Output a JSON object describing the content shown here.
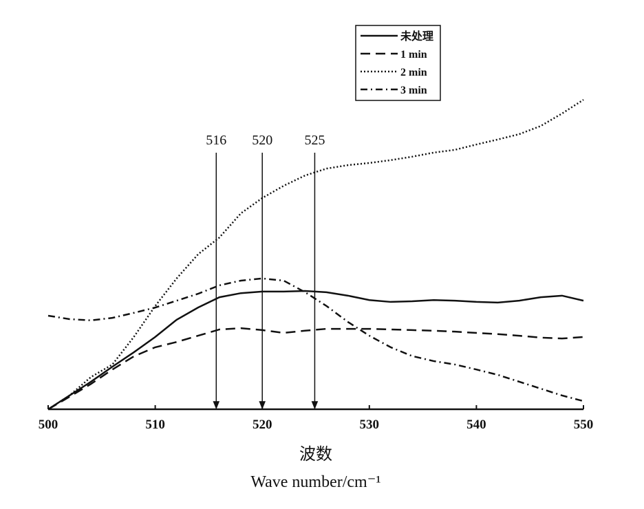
{
  "chart_data": {
    "type": "line",
    "x": [
      500,
      502,
      504,
      506,
      508,
      510,
      512,
      514,
      516,
      518,
      520,
      522,
      524,
      526,
      528,
      530,
      532,
      534,
      536,
      538,
      540,
      542,
      544,
      546,
      548,
      550
    ],
    "series": [
      {
        "name": "未处理",
        "color": "#111111",
        "style": "solid",
        "values": [
          0,
          4.4,
          8.8,
          13.6,
          18.2,
          23.1,
          28.6,
          32.5,
          35.8,
          37.1,
          37.6,
          37.6,
          37.8,
          37.4,
          36.3,
          34.9,
          34.3,
          34.5,
          34.9,
          34.7,
          34.3,
          34.1,
          34.7,
          35.8,
          36.3,
          34.7
        ]
      },
      {
        "name": "1 min",
        "color": "#111111",
        "style": "dashed",
        "values": [
          0,
          4.0,
          8.1,
          12.7,
          16.9,
          19.8,
          21.5,
          23.5,
          25.5,
          25.9,
          25.3,
          24.4,
          25.1,
          25.7,
          25.7,
          25.7,
          25.5,
          25.3,
          25.1,
          24.8,
          24.4,
          24.0,
          23.5,
          22.9,
          22.6,
          23.1
        ]
      },
      {
        "name": "2 min",
        "color": "#111111",
        "style": "dotted",
        "values": [
          0,
          4.4,
          10.3,
          14.3,
          23.1,
          33.0,
          41.8,
          49.5,
          54.9,
          62.6,
          67.5,
          71.4,
          74.7,
          76.9,
          78.0,
          78.7,
          79.6,
          80.7,
          82.0,
          82.9,
          84.6,
          86.2,
          87.9,
          90.5,
          94.5,
          98.9
        ]
      },
      {
        "name": "3 min",
        "color": "#111111",
        "style": "dashdot",
        "values": [
          29.9,
          28.8,
          28.4,
          29.2,
          30.8,
          32.5,
          34.7,
          36.9,
          39.6,
          41.1,
          41.8,
          41.1,
          37.4,
          33.0,
          27.9,
          23.5,
          19.8,
          17.0,
          15.4,
          14.3,
          12.7,
          11.0,
          8.8,
          6.6,
          4.4,
          2.6
        ]
      }
    ],
    "xlim": [
      500,
      550
    ],
    "xticks": [
      500,
      510,
      520,
      530,
      540,
      550
    ],
    "ylim": [
      0,
      100
    ],
    "xlabel": [
      "波数",
      "Wave number/cm⁻¹"
    ],
    "annotations": [
      {
        "text": "516",
        "x": 515.7
      },
      {
        "text": "520",
        "x": 520
      },
      {
        "text": "525",
        "x": 524.9
      }
    ],
    "legend": "upper right"
  }
}
